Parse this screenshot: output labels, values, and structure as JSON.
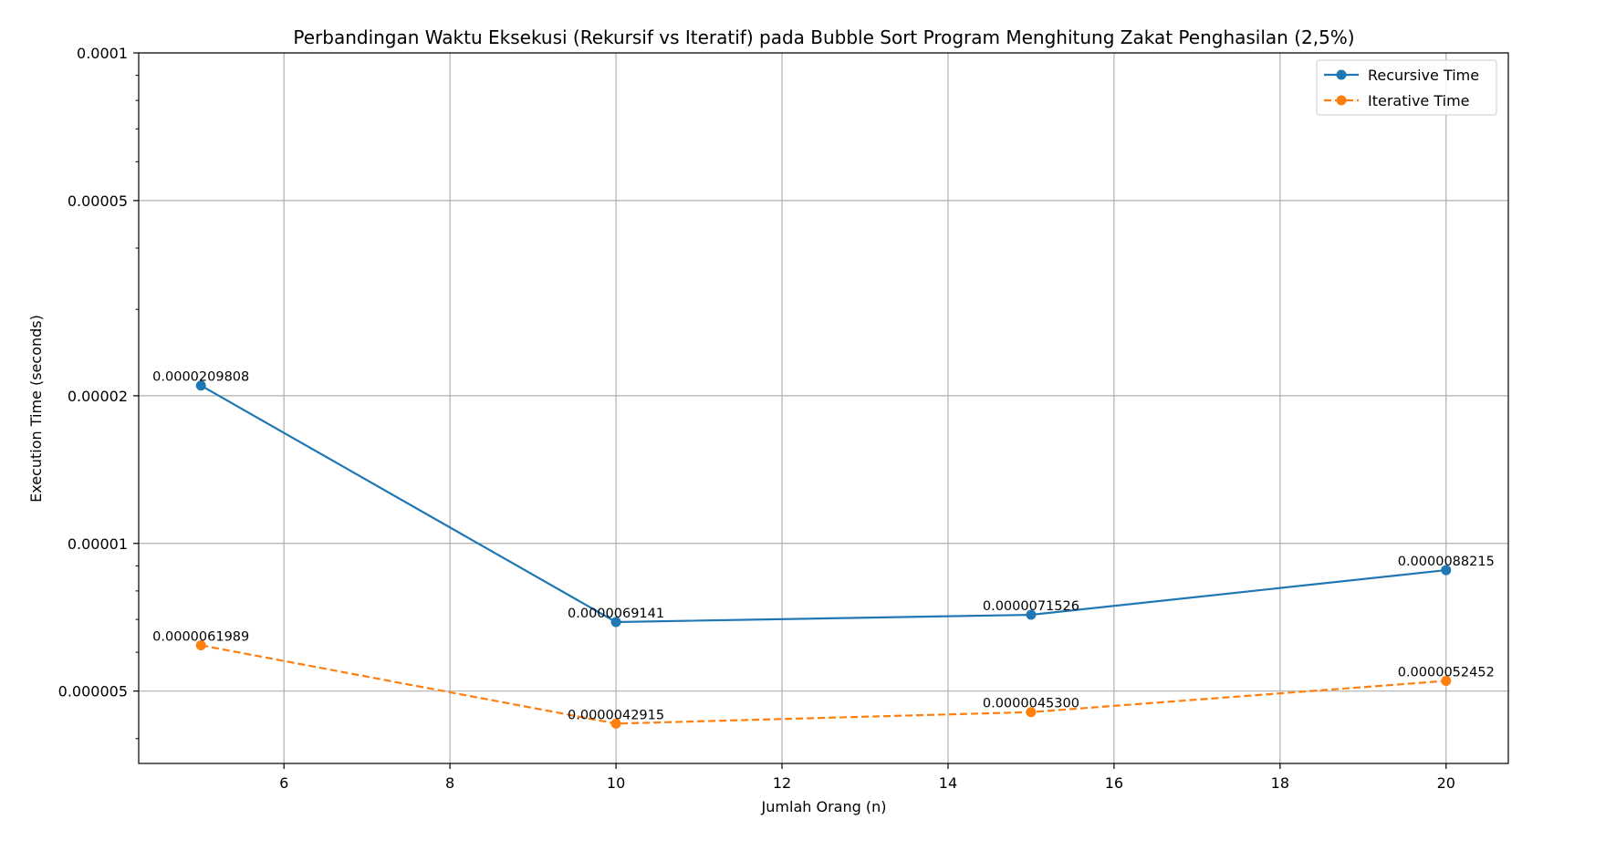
{
  "chart_data": {
    "type": "line",
    "title": "Perbandingan Waktu Eksekusi (Rekursif vs Iteratif) pada Bubble Sort Program Menghitung Zakat Penghasilan (2,5%)",
    "xlabel": "Jumlah Orang (n)",
    "ylabel": "Execution Time (seconds)",
    "yscale": "log",
    "xlim": [
      4.25,
      20.75
    ],
    "ylim": [
      3.56e-06,
      0.0001
    ],
    "x_ticks": [
      6,
      8,
      10,
      12,
      14,
      16,
      18,
      20
    ],
    "y_ticks": [
      5e-06,
      1e-05,
      2e-05,
      5e-05,
      0.0001
    ],
    "y_tick_labels": [
      "0.000005",
      "0.00001",
      "0.00002",
      "0.00005",
      "0.0001"
    ],
    "grid": true,
    "legend_position": "upper right",
    "x": [
      5,
      10,
      15,
      20
    ],
    "series": [
      {
        "name": "Recursive Time",
        "color": "#1f77b4",
        "linestyle": "solid",
        "values": [
          2.09808e-05,
          6.9141e-06,
          7.1526e-06,
          8.8215e-06
        ],
        "labels": [
          "0.0000209808",
          "0.0000069141",
          "0.0000071526",
          "0.0000088215"
        ]
      },
      {
        "name": "Iterative Time",
        "color": "#ff7f0e",
        "linestyle": "dashed",
        "values": [
          6.1989e-06,
          4.2915e-06,
          4.53e-06,
          5.2452e-06
        ],
        "labels": [
          "0.0000061989",
          "0.0000042915",
          "0.0000045300",
          "0.0000052452"
        ]
      }
    ]
  }
}
